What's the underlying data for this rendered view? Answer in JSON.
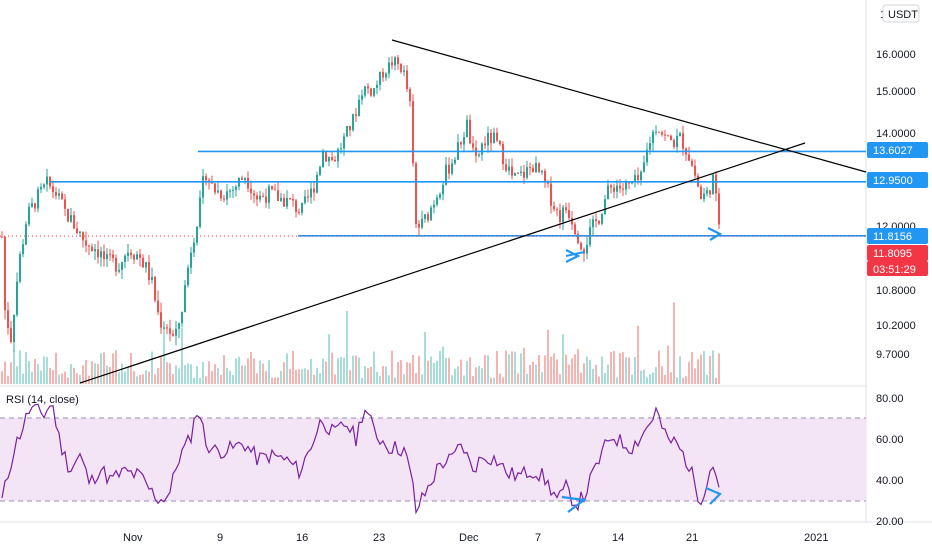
{
  "chart_data": {
    "type": "candlestick",
    "currency": "USDT",
    "price_axis": {
      "tick_labels": [
        "16.0000",
        "15.0000",
        "14.0000",
        "12.0000",
        "10.8000",
        "10.2000",
        "9.7000"
      ],
      "top_partial_label": "1"
    },
    "price_tags": [
      {
        "label": "13.6027",
        "color": "#2196f3"
      },
      {
        "label": "12.9500",
        "color": "#2196f3"
      },
      {
        "label": "11.8156",
        "color": "#2196f3"
      },
      {
        "label": "11.8095",
        "color": "#f23645"
      },
      {
        "label": "03:51:29",
        "color": "#f23645"
      }
    ],
    "horizontal_levels": [
      {
        "value": 13.6027,
        "color": "#2196f3"
      },
      {
        "value": 12.95,
        "color": "#2196f3"
      },
      {
        "value": 11.8156,
        "color": "#2196f3"
      }
    ],
    "x_axis": {
      "tick_labels": [
        "Nov",
        "9",
        "16",
        "23",
        "Dec",
        "7",
        "14",
        "21",
        "2021"
      ]
    },
    "colors": {
      "up": "#26a69a",
      "down": "#ef5350",
      "level_line": "#2196f3",
      "trend_line": "#000000",
      "rsi_line": "#7b1fa2",
      "rsi_band": "#f3e5f5",
      "arrow": "#2196f3"
    },
    "rsi": {
      "title": "RSI (14, close)",
      "upper": 70,
      "lower": 30,
      "tick_labels": [
        "80.00",
        "60.00",
        "40.00",
        "20.00"
      ]
    }
  }
}
